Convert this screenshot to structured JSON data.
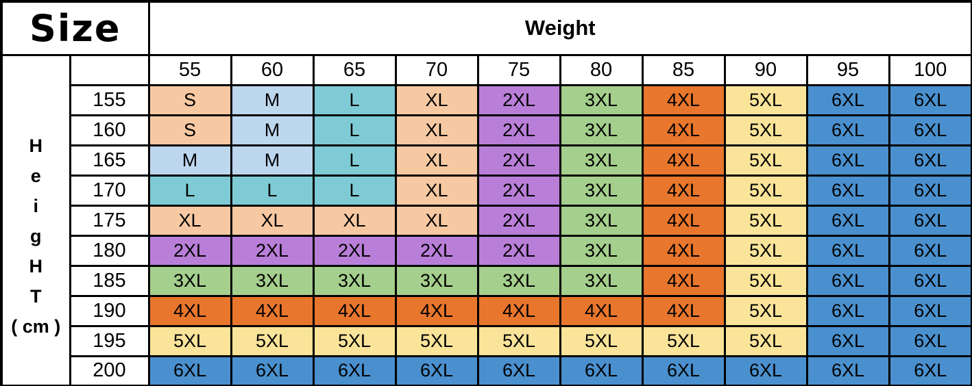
{
  "chart_data": {
    "type": "table",
    "title_corner": "Size",
    "column_group_label": "Weight",
    "row_group_label_text": "Height ( cm )",
    "row_group_label_letters": [
      "H",
      "e",
      "i",
      "g",
      "H",
      "T",
      "( cm )"
    ],
    "columns_weight_kg": [
      "55",
      "60",
      "65",
      "70",
      "75",
      "80",
      "85",
      "90",
      "95",
      "100"
    ],
    "rows_height_cm": [
      "155",
      "160",
      "165",
      "170",
      "175",
      "180",
      "185",
      "190",
      "195",
      "200"
    ],
    "cells": [
      [
        "S",
        "M",
        "L",
        "XL",
        "2XL",
        "3XL",
        "4XL",
        "5XL",
        "6XL",
        "6XL"
      ],
      [
        "S",
        "M",
        "L",
        "XL",
        "2XL",
        "3XL",
        "4XL",
        "5XL",
        "6XL",
        "6XL"
      ],
      [
        "M",
        "M",
        "L",
        "XL",
        "2XL",
        "3XL",
        "4XL",
        "5XL",
        "6XL",
        "6XL"
      ],
      [
        "L",
        "L",
        "L",
        "XL",
        "2XL",
        "3XL",
        "4XL",
        "5XL",
        "6XL",
        "6XL"
      ],
      [
        "XL",
        "XL",
        "XL",
        "XL",
        "2XL",
        "3XL",
        "4XL",
        "5XL",
        "6XL",
        "6XL"
      ],
      [
        "2XL",
        "2XL",
        "2XL",
        "2XL",
        "2XL",
        "3XL",
        "4XL",
        "5XL",
        "6XL",
        "6XL"
      ],
      [
        "3XL",
        "3XL",
        "3XL",
        "3XL",
        "3XL",
        "3XL",
        "4XL",
        "5XL",
        "6XL",
        "6XL"
      ],
      [
        "4XL",
        "4XL",
        "4XL",
        "4XL",
        "4XL",
        "4XL",
        "4XL",
        "5XL",
        "6XL",
        "6XL"
      ],
      [
        "5XL",
        "5XL",
        "5XL",
        "5XL",
        "5XL",
        "5XL",
        "5XL",
        "5XL",
        "6XL",
        "6XL"
      ],
      [
        "6XL",
        "6XL",
        "6XL",
        "6XL",
        "6XL",
        "6XL",
        "6XL",
        "6XL",
        "6XL",
        "6XL"
      ]
    ],
    "size_colors": {
      "S": "#F7C9A3",
      "M": "#BDD7EE",
      "L": "#7FCBD5",
      "XL": "#F7C9A3",
      "2XL": "#B97FD8",
      "3XL": "#A5CF8D",
      "4XL": "#E8762C",
      "5XL": "#FAE49A",
      "6XL": "#4A90CE"
    },
    "border_color": "#000000",
    "text_color": "#000000",
    "background": "#FFFFFF"
  }
}
